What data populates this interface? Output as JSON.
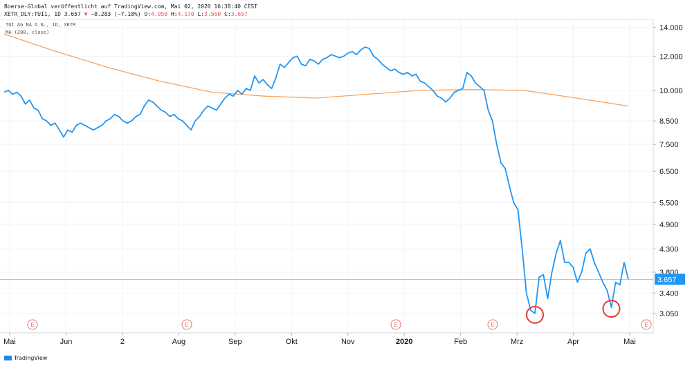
{
  "header": {
    "line1": "Boerse-Global veröffentlicht auf TradingView.com, Mai 02, 2020 16:38:40 CEST",
    "symbol": "XETR_DLY:TUI1, 1D",
    "last": "3.657",
    "arrow": "▼",
    "change": "−0.283 (−7.18%)",
    "o_label": "O:",
    "o_val": "4.050",
    "h_label": "H:",
    "h_val": "4.170",
    "l_label": "L:",
    "l_val": "3.560",
    "c_label": "C:",
    "c_val": "3.657"
  },
  "legend": {
    "series": "TUI AG NA O.N., 1D, XETR",
    "ma": "MA (200, close)"
  },
  "branding": {
    "name": "TradingView"
  },
  "colors": {
    "price": "#2196f3",
    "ma": "#f7a35c",
    "last_bg": "#2196f3",
    "circle": "#e53935",
    "earnings": "#e57373",
    "axis_text": "#131722",
    "grid": "#f0f3fa"
  },
  "chart_data": {
    "type": "line",
    "scale": "log",
    "ylim": [
      2.75,
      14.6
    ],
    "y_ticks": [
      14.0,
      12.0,
      10.0,
      8.5,
      7.5,
      6.5,
      5.5,
      4.9,
      4.3,
      3.8,
      3.4,
      3.05
    ],
    "y_tick_labels": [
      "14.000",
      "12.000",
      "10.000",
      "8.500",
      "7.500",
      "6.500",
      "5.500",
      "4.900",
      "4.300",
      "3.800",
      "3.400",
      "3.050"
    ],
    "x_labels": [
      "Mai",
      "Jun",
      "2",
      "Aug",
      "Sep",
      "Okt",
      "Nov",
      "2020",
      "Feb",
      "Mrz",
      "Apr",
      "Mai"
    ],
    "last_value_label": "3.657",
    "series": [
      {
        "values": [
          9.9,
          10.0,
          9.8,
          9.9,
          9.7,
          9.3,
          9.5,
          9.1,
          9.0,
          8.6,
          8.5,
          8.3,
          8.4,
          8.1,
          7.8,
          8.1,
          8.0,
          8.3,
          8.4,
          8.3,
          8.2,
          8.1,
          8.2,
          8.3,
          8.5,
          8.6,
          8.8,
          8.7,
          8.5,
          8.4,
          8.5,
          8.7,
          8.8,
          9.2,
          9.5,
          9.4,
          9.2,
          9.0,
          8.9,
          8.7,
          8.8,
          8.6,
          8.5,
          8.3,
          8.1,
          8.5,
          8.7,
          9.0,
          9.2,
          9.1,
          9.0,
          9.3,
          9.6,
          9.8,
          9.7,
          10.0,
          9.8,
          10.1,
          10.0,
          10.8,
          10.4,
          10.6,
          10.3,
          10.1,
          10.7,
          11.5,
          11.3,
          11.6,
          11.9,
          12.0,
          11.5,
          11.4,
          11.8,
          11.7,
          11.5,
          11.8,
          11.9,
          12.1,
          12.0,
          11.9,
          12.0,
          12.2,
          12.3,
          12.1,
          12.4,
          12.6,
          12.5,
          12.0,
          11.8,
          11.5,
          11.3,
          11.1,
          11.2,
          11.0,
          10.9,
          11.0,
          10.8,
          10.9,
          10.5,
          10.4,
          10.2,
          10.0,
          9.7,
          9.6,
          9.4,
          9.6,
          9.9,
          10.0,
          10.1,
          11.0,
          10.8,
          10.4,
          10.2,
          10.0,
          9.0,
          8.5,
          7.5,
          6.8,
          6.6,
          6.0,
          5.5,
          5.3,
          4.3,
          3.4,
          3.1,
          3.05,
          3.7,
          3.75,
          3.3,
          3.8,
          4.2,
          4.5,
          4.0,
          4.0,
          3.9,
          3.6,
          3.8,
          4.2,
          4.3,
          4.0,
          3.8,
          3.6,
          3.45,
          3.15,
          3.6,
          3.55,
          4.0,
          3.657
        ]
      },
      {
        "name": "MA (200, close)",
        "values": [
          13.5,
          12.3,
          11.3,
          10.5,
          9.9,
          9.7,
          9.6,
          9.8,
          10.0,
          10.05,
          10.0,
          9.6,
          9.2
        ]
      }
    ],
    "highlights": [
      "circle",
      "circle"
    ],
    "earnings_markers": [
      "E",
      "E",
      "E",
      "E",
      "E"
    ]
  }
}
